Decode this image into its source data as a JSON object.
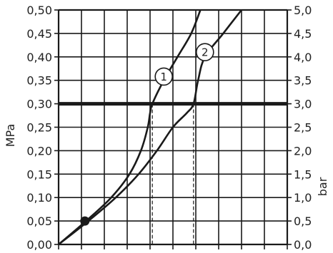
{
  "chart_data": {
    "type": "line",
    "title": "",
    "ylabel_left": "MPa",
    "ylabel_right": "bar",
    "y_ticks_left": [
      "0,00",
      "0,05",
      "0,10",
      "0,15",
      "0,20",
      "0,25",
      "0,30",
      "0,35",
      "0,40",
      "0,45",
      "0,50"
    ],
    "y_ticks_right": [
      "0,0",
      "0,5",
      "1,0",
      "1,5",
      "2,0",
      "2,5",
      "3,0",
      "3,5",
      "4,0",
      "4,5",
      "5,0"
    ],
    "ylim": [
      0,
      0.5
    ],
    "x_divisions": 10,
    "x_tick_labels": [],
    "grid": true,
    "reference_line": {
      "y": 0.3
    },
    "start_point": {
      "x": 1.15,
      "y": 0.05
    },
    "series": [
      {
        "label": "1",
        "points": [
          [
            0,
            0
          ],
          [
            1.2,
            0.05
          ],
          [
            2.3,
            0.1
          ],
          [
            3.1,
            0.15
          ],
          [
            3.6,
            0.2
          ],
          [
            3.9,
            0.25
          ],
          [
            4.0,
            0.28
          ],
          [
            4.1,
            0.3
          ],
          [
            4.6,
            0.35
          ],
          [
            5.2,
            0.4
          ],
          [
            5.8,
            0.45
          ],
          [
            6.2,
            0.5
          ]
        ]
      },
      {
        "label": "2",
        "points": [
          [
            0,
            0
          ],
          [
            1.3,
            0.05
          ],
          [
            2.5,
            0.1
          ],
          [
            3.5,
            0.15
          ],
          [
            4.3,
            0.2
          ],
          [
            5.0,
            0.25
          ],
          [
            5.6,
            0.28
          ],
          [
            5.9,
            0.3
          ],
          [
            6.1,
            0.35
          ],
          [
            6.4,
            0.4
          ],
          [
            7.2,
            0.45
          ],
          [
            8.0,
            0.5
          ]
        ]
      }
    ],
    "dashed_drop_x": [
      4.1,
      5.9
    ],
    "curve_label_positions": [
      {
        "x": 4.6,
        "y": 0.358
      },
      {
        "x": 6.4,
        "y": 0.41
      }
    ]
  },
  "colors": {
    "line": "#1a1a1a",
    "grid": "#1a1a1a",
    "text": "#222222"
  }
}
